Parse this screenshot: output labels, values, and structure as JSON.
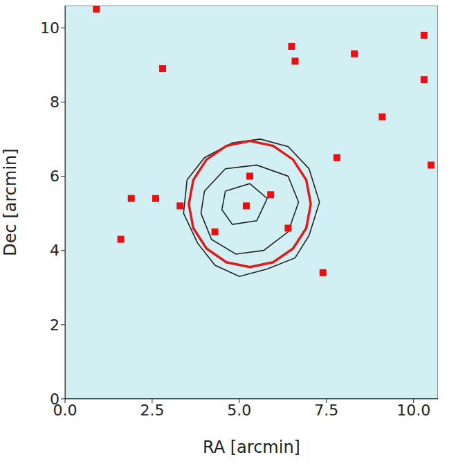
{
  "chart_data": {
    "type": "scatter",
    "x_label": "RA [arcmin]",
    "y_label": "Dec [arcmin]",
    "xlim": [
      0,
      10.7
    ],
    "ylim": [
      0,
      10.6
    ],
    "xticks": [
      {
        "value": 0,
        "label": "0.0"
      },
      2.5,
      {
        "value": 5,
        "label": "5.0"
      },
      7.5,
      {
        "value": 10,
        "label": "10.0"
      }
    ],
    "yticks": [
      0,
      2,
      4,
      6,
      8,
      10
    ],
    "grid": false,
    "series": [
      {
        "type": "contour",
        "color": "#222222",
        "line_style": "solid",
        "x": [
          3.5,
          4.0,
          4.8,
          5.6,
          6.4,
          7.0,
          7.3,
          7.0,
          6.6,
          5.8,
          5.0,
          4.3,
          3.8,
          3.4,
          3.5
        ],
        "y": [
          5.9,
          6.5,
          6.9,
          7.0,
          6.8,
          6.2,
          5.3,
          4.4,
          3.8,
          3.5,
          3.3,
          3.6,
          4.2,
          5.0,
          5.9
        ]
      },
      {
        "type": "contour",
        "color": "#222222",
        "line_style": "solid",
        "x": [
          4.0,
          4.6,
          5.5,
          6.4,
          6.7,
          6.4,
          5.7,
          4.9,
          4.2,
          3.9,
          4.0
        ],
        "y": [
          5.6,
          6.2,
          6.3,
          6.0,
          5.3,
          4.5,
          4.0,
          3.9,
          4.3,
          5.0,
          5.6
        ]
      },
      {
        "type": "contour",
        "color": "#222222",
        "line_style": "solid",
        "x": [
          4.6,
          5.3,
          5.8,
          5.5,
          4.8,
          4.5,
          4.6
        ],
        "y": [
          5.6,
          5.8,
          5.4,
          4.8,
          4.7,
          5.1,
          5.6
        ]
      },
      {
        "type": "circle",
        "color": "#e01b1b",
        "line_style": "solid",
        "x": [
          7.05,
          6.92,
          6.54,
          5.97,
          5.3,
          4.63,
          4.06,
          3.68,
          3.55,
          3.68,
          4.06,
          4.63,
          5.3,
          5.97,
          6.54,
          6.92,
          7.05
        ],
        "y": [
          5.25,
          5.9,
          6.45,
          6.82,
          6.95,
          6.82,
          6.45,
          5.9,
          5.25,
          4.6,
          4.05,
          3.68,
          3.55,
          3.68,
          4.05,
          4.6,
          5.25
        ]
      },
      {
        "type": "sources",
        "color": "#e81010",
        "marker": "square",
        "x": [
          5.3,
          4.3,
          5.9,
          6.4,
          5.2,
          3.3,
          1.9,
          2.6,
          1.6,
          6.6,
          7.8,
          9.1,
          10.5,
          2.8,
          6.5,
          7.4,
          8.3,
          0.9,
          10.3,
          10.3
        ],
        "y": [
          6.0,
          4.5,
          5.5,
          4.6,
          5.2,
          5.2,
          5.4,
          5.4,
          4.3,
          9.1,
          6.5,
          7.6,
          6.3,
          8.9,
          9.5,
          3.4,
          9.3,
          10.5,
          9.8,
          8.6
        ]
      }
    ]
  }
}
